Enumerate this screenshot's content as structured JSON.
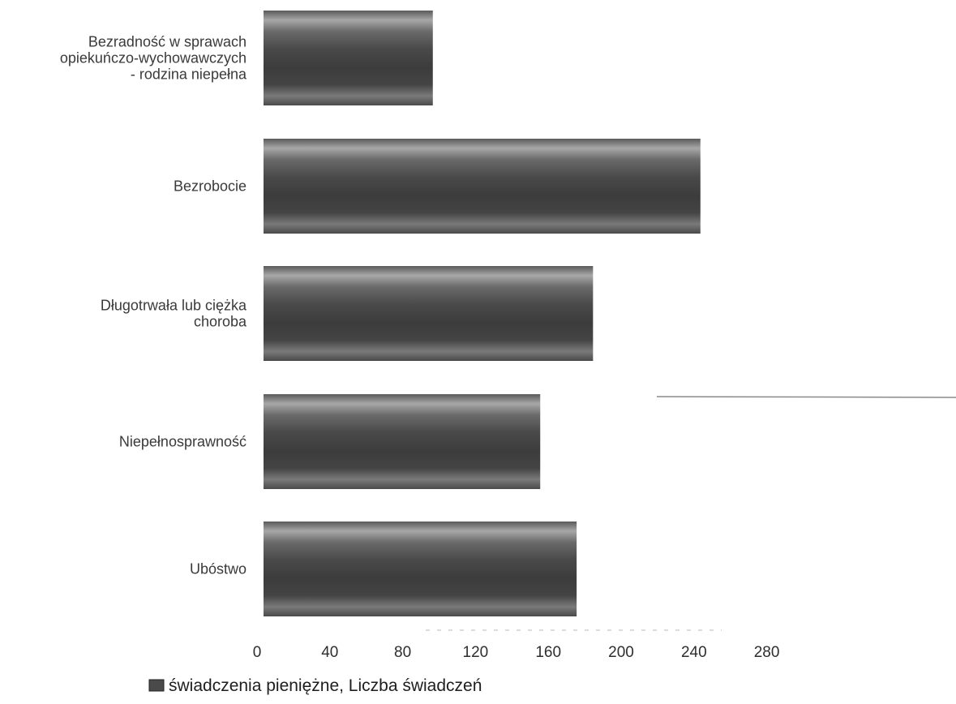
{
  "chart_data": {
    "type": "bar",
    "orientation": "horizontal",
    "categories": [
      [
        "Bezradność w sprawach",
        "opiekuńczo-wychowawczych",
        "- rodzina niepełna"
      ],
      [
        "Bezrobocie"
      ],
      [
        "Długotrwała lub ciężka",
        "choroba"
      ],
      [
        "Niepełnosprawność"
      ],
      [
        "Ubóstwo"
      ]
    ],
    "series": [
      {
        "name": "świadczenia pieniężne, Liczba świadczeń",
        "values": [
          93,
          240,
          181,
          152,
          172
        ]
      }
    ],
    "x_ticks": [
      0,
      40,
      80,
      120,
      160,
      200,
      240,
      280
    ],
    "xlim": [
      0,
      280
    ],
    "grid": false,
    "legend_position": "bottom-left"
  },
  "colors": {
    "bar_dark": "#3b3b3b",
    "bar_light": "#9a9a9a",
    "legend_icon": "#4a4a4a"
  }
}
